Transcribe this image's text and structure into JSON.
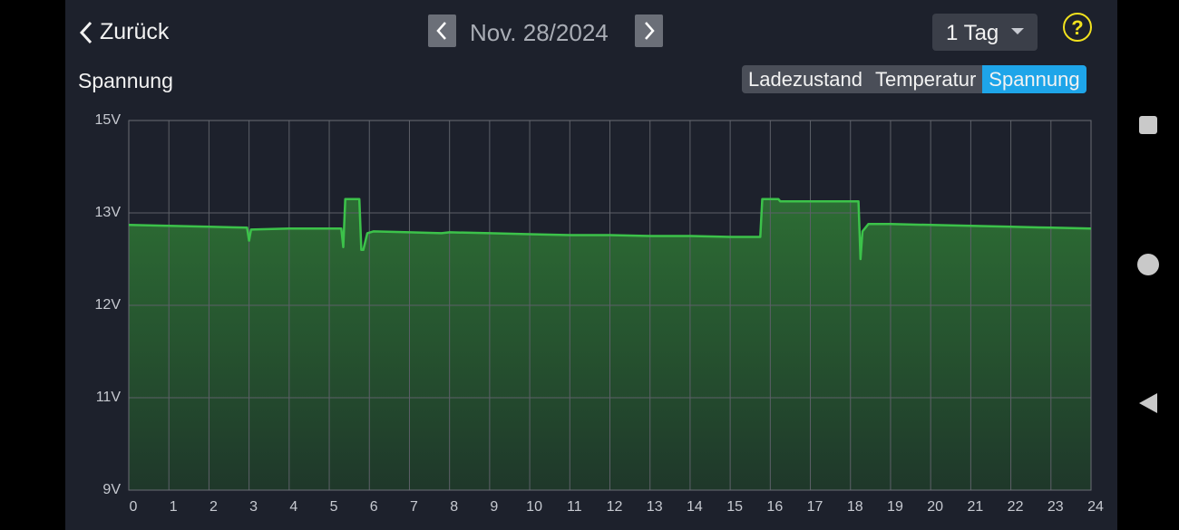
{
  "header": {
    "back": "Zurück",
    "date": "Nov. 28/2024",
    "range": "1 Tag",
    "help": "?"
  },
  "section_title": "Spannung",
  "tabs": [
    "Ladezustand",
    "Temperatur",
    "Spannung"
  ],
  "active_tab": 2,
  "chart_data": {
    "type": "area",
    "color": "#3cc24a",
    "grid": true,
    "xlim": [
      0,
      24
    ],
    "xticks": [
      0,
      1,
      2,
      3,
      4,
      5,
      6,
      7,
      8,
      9,
      10,
      11,
      12,
      13,
      14,
      15,
      16,
      17,
      18,
      19,
      20,
      21,
      22,
      23,
      24
    ],
    "ylim": [
      9,
      15
    ],
    "yticks": [
      {
        "value": 9,
        "label": "9V"
      },
      {
        "value": 11,
        "label": "11V"
      },
      {
        "value": 12,
        "label": "12V"
      },
      {
        "value": 13,
        "label": "13V"
      },
      {
        "value": 15,
        "label": "15V"
      }
    ],
    "x": [
      0,
      1,
      2,
      2.95,
      3.0,
      3.05,
      4,
      5.3,
      5.35,
      5.4,
      5.75,
      5.8,
      5.85,
      5.95,
      6.1,
      7,
      7.8,
      8,
      9,
      10,
      11,
      12,
      13,
      14,
      15,
      15.75,
      15.8,
      16.2,
      16.25,
      18.2,
      18.25,
      18.3,
      18.45,
      19,
      20,
      21,
      22,
      23,
      24
    ],
    "values": [
      12.87,
      12.86,
      12.85,
      12.84,
      12.7,
      12.82,
      12.83,
      12.83,
      12.63,
      13.3,
      13.3,
      12.6,
      12.6,
      12.78,
      12.8,
      12.79,
      12.78,
      12.79,
      12.78,
      12.77,
      12.76,
      12.76,
      12.75,
      12.75,
      12.74,
      12.74,
      13.3,
      13.3,
      13.25,
      13.25,
      12.5,
      12.8,
      12.88,
      12.88,
      12.87,
      12.86,
      12.85,
      12.84,
      12.83
    ]
  }
}
